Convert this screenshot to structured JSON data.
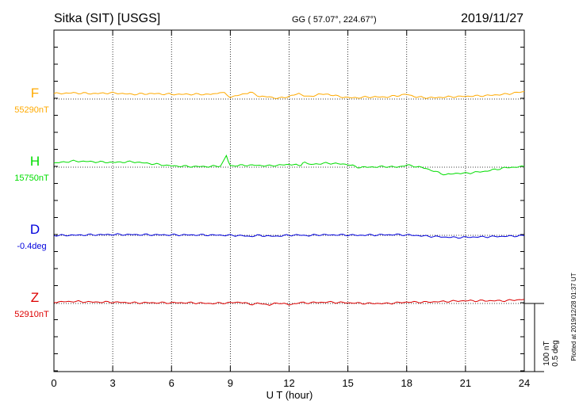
{
  "header": {
    "station": "Sitka (SIT)  [USGS]",
    "coords": "GG ( 57.07°, 224.67°)",
    "date": "2019/11/27"
  },
  "footer": {
    "plotted": "Plotted at 2019/12/28 01:37 UT"
  },
  "scale_bar": {
    "line1": "100 nT",
    "line2": "0.5 deg"
  },
  "colors": {
    "F": "#ffaa00",
    "H": "#00dd00",
    "D": "#0000dd",
    "Z": "#dd0000"
  },
  "chart_data": {
    "type": "line",
    "xlabel": "U T (hour)",
    "xlim": [
      0,
      24
    ],
    "x_ticks": [
      "0",
      "3",
      "6",
      "9",
      "12",
      "15",
      "18",
      "21",
      "24"
    ],
    "grid": true,
    "series": [
      {
        "name": "F",
        "baseline_label": "55290nT",
        "baseline": 55290,
        "unit": "nT",
        "points": [
          [
            0,
            55298
          ],
          [
            1,
            55299
          ],
          [
            2,
            55298
          ],
          [
            3,
            55299
          ],
          [
            4,
            55297
          ],
          [
            5,
            55298
          ],
          [
            6,
            55297
          ],
          [
            7,
            55297
          ],
          [
            8,
            55297
          ],
          [
            8.7,
            55300
          ],
          [
            9,
            55293
          ],
          [
            9.5,
            55296
          ],
          [
            10,
            55300
          ],
          [
            10.5,
            55294
          ],
          [
            11,
            55293
          ],
          [
            11.5,
            55291
          ],
          [
            12,
            55294
          ],
          [
            12.5,
            55298
          ],
          [
            13,
            55293
          ],
          [
            13.5,
            55297
          ],
          [
            14,
            55297
          ],
          [
            14.5,
            55294
          ],
          [
            15,
            55292
          ],
          [
            15.5,
            55292
          ],
          [
            16,
            55293
          ],
          [
            16.5,
            55293
          ],
          [
            17,
            55293
          ],
          [
            17.5,
            55295
          ],
          [
            18,
            55297
          ],
          [
            18.5,
            55293
          ],
          [
            19,
            55292
          ],
          [
            19.5,
            55292
          ],
          [
            20,
            55293
          ],
          [
            21,
            55294
          ],
          [
            22,
            55295
          ],
          [
            23,
            55297
          ],
          [
            24,
            55301
          ]
        ]
      },
      {
        "name": "H",
        "baseline_label": "15750nT",
        "baseline": 15750,
        "unit": "nT",
        "points": [
          [
            0,
            15756
          ],
          [
            1,
            15759
          ],
          [
            2,
            15758
          ],
          [
            3,
            15757
          ],
          [
            4,
            15758
          ],
          [
            5,
            15755
          ],
          [
            6,
            15752
          ],
          [
            7,
            15751
          ],
          [
            8,
            15751
          ],
          [
            8.5,
            15752
          ],
          [
            8.8,
            15766
          ],
          [
            9,
            15752
          ],
          [
            10,
            15753
          ],
          [
            11,
            15752
          ],
          [
            12,
            15754
          ],
          [
            12.6,
            15753
          ],
          [
            12.8,
            15758
          ],
          [
            13,
            15754
          ],
          [
            14,
            15756
          ],
          [
            15,
            15754
          ],
          [
            15.5,
            15750
          ],
          [
            16,
            15750
          ],
          [
            17,
            15751
          ],
          [
            17.5,
            15750
          ],
          [
            18,
            15753
          ],
          [
            18.5,
            15751
          ],
          [
            19,
            15748
          ],
          [
            19.5,
            15743
          ],
          [
            20,
            15739
          ],
          [
            20.5,
            15741
          ],
          [
            21,
            15741
          ],
          [
            22,
            15744
          ],
          [
            23,
            15749
          ],
          [
            24,
            15751
          ]
        ]
      },
      {
        "name": "D",
        "baseline_label": "-0.4deg",
        "baseline": -0.4,
        "unit": "deg",
        "points": [
          [
            0,
            -0.401
          ],
          [
            1,
            -0.399
          ],
          [
            2,
            -0.396
          ],
          [
            3,
            -0.394
          ],
          [
            4,
            -0.395
          ],
          [
            5,
            -0.396
          ],
          [
            6,
            -0.397
          ],
          [
            7,
            -0.397
          ],
          [
            8,
            -0.398
          ],
          [
            9,
            -0.4
          ],
          [
            9.5,
            -0.402
          ],
          [
            10,
            -0.408
          ],
          [
            10.5,
            -0.4
          ],
          [
            11,
            -0.407
          ],
          [
            11.5,
            -0.405
          ],
          [
            12,
            -0.399
          ],
          [
            12.5,
            -0.398
          ],
          [
            13,
            -0.402
          ],
          [
            13.5,
            -0.396
          ],
          [
            14,
            -0.397
          ],
          [
            15,
            -0.397
          ],
          [
            15.5,
            -0.4
          ],
          [
            16,
            -0.398
          ],
          [
            17,
            -0.396
          ],
          [
            17.5,
            -0.395
          ],
          [
            18,
            -0.397
          ],
          [
            18.5,
            -0.401
          ],
          [
            19,
            -0.406
          ],
          [
            20,
            -0.413
          ],
          [
            20.5,
            -0.416
          ],
          [
            21,
            -0.414
          ],
          [
            22,
            -0.411
          ],
          [
            23,
            -0.407
          ],
          [
            24,
            -0.403
          ]
        ]
      },
      {
        "name": "Z",
        "baseline_label": "52910nT",
        "baseline": 52910,
        "unit": "nT",
        "points": [
          [
            0,
            52912
          ],
          [
            1,
            52913
          ],
          [
            2,
            52912
          ],
          [
            3,
            52912
          ],
          [
            4,
            52911
          ],
          [
            5,
            52911
          ],
          [
            6,
            52911
          ],
          [
            7,
            52911
          ],
          [
            8,
            52910
          ],
          [
            9,
            52911
          ],
          [
            9.5,
            52912
          ],
          [
            10,
            52909
          ],
          [
            10.5,
            52910
          ],
          [
            11,
            52908
          ],
          [
            11.5,
            52911
          ],
          [
            12,
            52908
          ],
          [
            12.5,
            52911
          ],
          [
            13,
            52911
          ],
          [
            14,
            52912
          ],
          [
            15,
            52911
          ],
          [
            16,
            52910
          ],
          [
            17,
            52910
          ],
          [
            18,
            52912
          ],
          [
            19,
            52912
          ],
          [
            20,
            52913
          ],
          [
            21,
            52914
          ],
          [
            22,
            52914
          ],
          [
            23,
            52914
          ],
          [
            24,
            52916
          ]
        ]
      }
    ]
  }
}
